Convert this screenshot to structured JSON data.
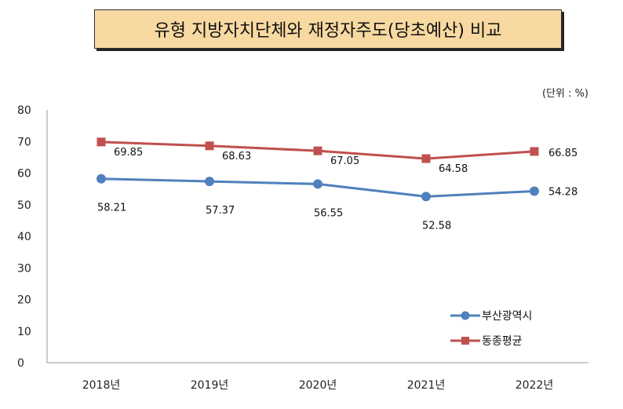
{
  "title": "유형 지방자치단체와 재정자주도(당초예산) 비교",
  "unit_label": "(단위 : %)",
  "chart_data": {
    "type": "line",
    "x": [
      "2018년",
      "2019년",
      "2020년",
      "2021년",
      "2022년"
    ],
    "ylim": [
      0,
      80
    ],
    "yticks": [
      0,
      10,
      20,
      30,
      40,
      50,
      60,
      70,
      80
    ],
    "grid": false,
    "legend": "bottom-right",
    "series": [
      {
        "name": "부산광역시",
        "values": [
          58.21,
          57.37,
          56.55,
          52.58,
          54.28
        ],
        "color": "#4f81bd",
        "marker": "circle"
      },
      {
        "name": "동종평균",
        "values": [
          69.85,
          68.63,
          67.05,
          64.58,
          66.85
        ],
        "color": "#c0504d",
        "marker": "square"
      }
    ]
  }
}
